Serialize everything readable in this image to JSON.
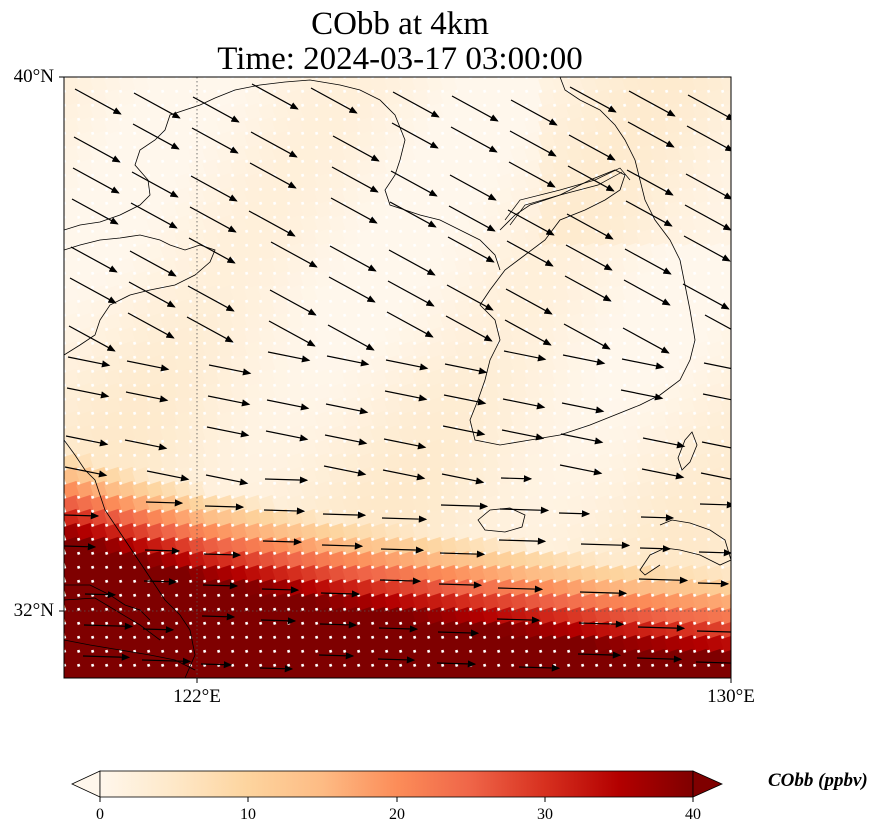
{
  "title": {
    "line1": "CObb at 4km",
    "line2": "Time: 2024-03-17 03:00:00"
  },
  "axes": {
    "lat_ticks": [
      {
        "value": 40,
        "label": "40°N"
      },
      {
        "value": 32,
        "label": "32°N"
      }
    ],
    "lon_ticks": [
      {
        "value": 122,
        "label": "122°E"
      },
      {
        "value": 130,
        "label": "130°E"
      }
    ],
    "extent": {
      "lon_min": 120,
      "lon_max": 130,
      "lat_min": 31,
      "lat_max": 40
    },
    "gridlines": true
  },
  "colorbar": {
    "label": "CObb (ppbv)",
    "min": 0,
    "max": 40,
    "ticks": [
      "0",
      "10",
      "20",
      "30",
      "40"
    ],
    "colormap": "OrRd",
    "extend": "both",
    "colors": [
      "#fff7ec",
      "#fee8c8",
      "#fdd49e",
      "#fdbb84",
      "#fc8d59",
      "#ef6548",
      "#d7301f",
      "#b30000",
      "#7f0000"
    ]
  },
  "field": {
    "description_values": "CObb concentration ~1-3 ppbv over northern area, sharp increase south of ~33.5°N, saturated >40 ppbv in south-west"
  },
  "chart_data": {
    "type": "heatmap",
    "variable": "CObb",
    "units": "ppbv",
    "vmin": 0,
    "vmax": 40,
    "front_boundary": [
      [
        120,
        33.6
      ],
      [
        122,
        33.0
      ],
      [
        124,
        32.6
      ],
      [
        126,
        32.3
      ],
      [
        128,
        32.0
      ],
      [
        130,
        31.8
      ]
    ]
  }
}
